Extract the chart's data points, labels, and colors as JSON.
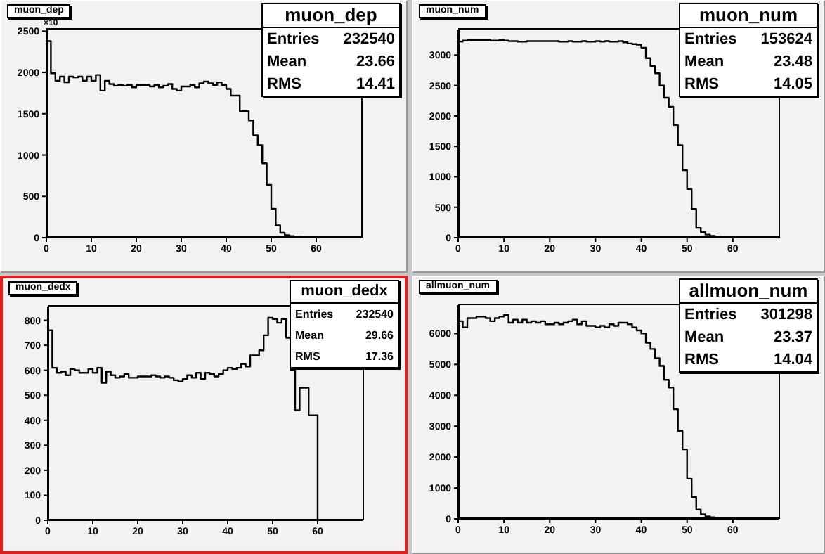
{
  "chart_data": [
    {
      "type": "histogram",
      "title": "muon_dep",
      "bins": [
        0,
        1,
        2,
        3,
        4,
        5,
        6,
        7,
        8,
        9,
        10,
        11,
        12,
        13,
        14,
        15,
        16,
        17,
        18,
        19,
        20,
        21,
        22,
        23,
        24,
        25,
        26,
        27,
        28,
        29,
        30,
        31,
        32,
        33,
        34,
        35,
        36,
        37,
        38,
        39,
        40,
        41,
        42,
        43,
        44,
        45,
        46,
        47,
        48,
        49,
        50,
        51,
        52,
        53,
        54,
        55,
        56,
        57,
        58,
        59,
        60,
        61,
        62,
        63,
        64,
        65,
        66,
        67,
        68,
        69,
        70
      ],
      "values": [
        2380,
        1990,
        1900,
        1950,
        1880,
        1950,
        1940,
        1950,
        1900,
        1950,
        1900,
        1970,
        1780,
        1900,
        1860,
        1840,
        1850,
        1840,
        1850,
        1820,
        1850,
        1850,
        1850,
        1830,
        1850,
        1820,
        1840,
        1860,
        1800,
        1780,
        1830,
        1830,
        1850,
        1820,
        1870,
        1890,
        1870,
        1850,
        1880,
        1850,
        1800,
        1720,
        1720,
        1530,
        1530,
        1420,
        1240,
        1120,
        900,
        640,
        350,
        150,
        60,
        30,
        20,
        10,
        10,
        0,
        0,
        0,
        0,
        0,
        0,
        0,
        0,
        0,
        0,
        0,
        0,
        0
      ],
      "color": "#000000",
      "xlim": [
        0,
        70
      ],
      "xticks": [
        0,
        10,
        20,
        30,
        40,
        50,
        60
      ],
      "ylim": [
        0,
        2520
      ],
      "yticks": [
        0,
        500,
        1000,
        1500,
        2000,
        2500
      ],
      "grid": false,
      "legend": false,
      "annotations": [
        "muon_dep",
        "Entries 232540",
        "Mean 23.66",
        "RMS 14.41",
        "×10"
      ]
    },
    {
      "type": "histogram",
      "title": "muon_num",
      "bins": [
        0,
        1,
        2,
        3,
        4,
        5,
        6,
        7,
        8,
        9,
        10,
        11,
        12,
        13,
        14,
        15,
        16,
        17,
        18,
        19,
        20,
        21,
        22,
        23,
        24,
        25,
        26,
        27,
        28,
        29,
        30,
        31,
        32,
        33,
        34,
        35,
        36,
        37,
        38,
        39,
        40,
        41,
        42,
        43,
        44,
        45,
        46,
        47,
        48,
        49,
        50,
        51,
        52,
        53,
        54,
        55,
        56,
        57,
        58,
        59,
        60,
        61,
        62,
        63,
        64,
        65,
        66,
        67,
        68,
        69,
        70
      ],
      "values": [
        3220,
        3240,
        3250,
        3250,
        3250,
        3250,
        3250,
        3240,
        3240,
        3250,
        3240,
        3230,
        3230,
        3220,
        3220,
        3230,
        3230,
        3230,
        3230,
        3230,
        3230,
        3230,
        3220,
        3220,
        3230,
        3220,
        3220,
        3230,
        3220,
        3220,
        3230,
        3220,
        3230,
        3220,
        3220,
        3230,
        3210,
        3190,
        3180,
        3170,
        3120,
        2950,
        2820,
        2700,
        2500,
        2300,
        2150,
        1850,
        1520,
        1110,
        800,
        470,
        160,
        90,
        50,
        30,
        20,
        10,
        0,
        0,
        0,
        0,
        0,
        0,
        0,
        0,
        0,
        0,
        0,
        0
      ],
      "color": "#000000",
      "xlim": [
        0,
        70
      ],
      "xticks": [
        0,
        10,
        20,
        30,
        40,
        50,
        60
      ],
      "ylim": [
        0,
        3420
      ],
      "yticks": [
        0,
        500,
        1000,
        1500,
        2000,
        2500,
        3000
      ],
      "grid": false,
      "legend": false,
      "annotations": [
        "muon_num",
        "Entries 153624",
        "Mean 23.48",
        "RMS 14.05"
      ]
    },
    {
      "type": "histogram",
      "title": "muon_dedx",
      "bins": [
        0,
        1,
        2,
        3,
        4,
        5,
        6,
        7,
        8,
        9,
        10,
        11,
        12,
        13,
        14,
        15,
        16,
        17,
        18,
        19,
        20,
        21,
        22,
        23,
        24,
        25,
        26,
        27,
        28,
        29,
        30,
        31,
        32,
        33,
        34,
        35,
        36,
        37,
        38,
        39,
        40,
        41,
        42,
        43,
        44,
        45,
        46,
        47,
        48,
        49,
        50,
        51,
        52,
        53,
        54,
        55,
        56,
        57,
        58,
        59,
        60,
        61,
        62,
        63,
        64,
        65,
        66,
        67,
        68,
        69,
        70
      ],
      "values": [
        760,
        610,
        590,
        595,
        580,
        605,
        600,
        590,
        590,
        605,
        590,
        610,
        550,
        595,
        580,
        570,
        575,
        585,
        570,
        570,
        575,
        575,
        575,
        580,
        575,
        570,
        575,
        570,
        560,
        555,
        565,
        580,
        570,
        590,
        565,
        590,
        585,
        575,
        585,
        600,
        610,
        605,
        610,
        625,
        615,
        660,
        660,
        680,
        740,
        810,
        805,
        790,
        805,
        730,
        600,
        440,
        530,
        530,
        420,
        420,
        0,
        0,
        0,
        0,
        0,
        0,
        0,
        0,
        0,
        0
      ],
      "color": "#000000",
      "xlim": [
        0,
        70
      ],
      "xticks": [
        0,
        10,
        20,
        30,
        40,
        50,
        60
      ],
      "ylim": [
        0,
        855
      ],
      "yticks": [
        0,
        100,
        200,
        300,
        400,
        500,
        600,
        700,
        800
      ],
      "grid": false,
      "legend": false,
      "annotations": [
        "muon_dedx",
        "Entries 232540",
        "Mean 29.66",
        "RMS 17.36"
      ]
    },
    {
      "type": "histogram",
      "title": "allmuon_num",
      "bins": [
        0,
        1,
        2,
        3,
        4,
        5,
        6,
        7,
        8,
        9,
        10,
        11,
        12,
        13,
        14,
        15,
        16,
        17,
        18,
        19,
        20,
        21,
        22,
        23,
        24,
        25,
        26,
        27,
        28,
        29,
        30,
        31,
        32,
        33,
        34,
        35,
        36,
        37,
        38,
        39,
        40,
        41,
        42,
        43,
        44,
        45,
        46,
        47,
        48,
        49,
        50,
        51,
        52,
        53,
        54,
        55,
        56,
        57,
        58,
        59,
        60,
        61,
        62,
        63,
        64,
        65,
        66,
        67,
        68,
        69,
        70
      ],
      "values": [
        6400,
        6200,
        6500,
        6500,
        6550,
        6550,
        6500,
        6400,
        6500,
        6550,
        6600,
        6350,
        6450,
        6350,
        6450,
        6350,
        6400,
        6350,
        6400,
        6300,
        6300,
        6350,
        6300,
        6350,
        6400,
        6450,
        6300,
        6400,
        6250,
        6250,
        6200,
        6250,
        6200,
        6300,
        6250,
        6350,
        6350,
        6300,
        6200,
        6100,
        6000,
        5700,
        5500,
        5200,
        4950,
        4500,
        4250,
        3550,
        2850,
        2250,
        1300,
        700,
        300,
        150,
        80,
        50,
        30,
        20,
        10,
        0,
        0,
        0,
        0,
        0,
        0,
        0,
        0,
        0,
        0,
        0
      ],
      "color": "#000000",
      "xlim": [
        0,
        70
      ],
      "xticks": [
        0,
        10,
        20,
        30,
        40,
        50,
        60
      ],
      "ylim": [
        0,
        6920
      ],
      "yticks": [
        0,
        1000,
        2000,
        3000,
        4000,
        5000,
        6000
      ],
      "grid": false,
      "legend": false,
      "annotations": [
        "allmuon_num",
        "Entries 301298",
        "Mean 23.37",
        "RMS 14.04"
      ]
    }
  ]
}
